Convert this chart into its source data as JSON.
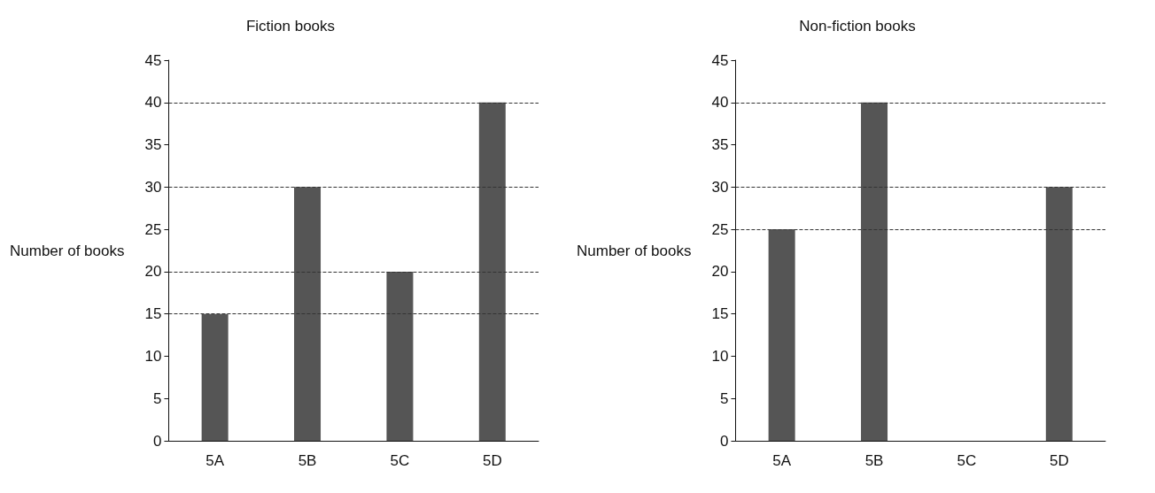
{
  "chart_data": [
    {
      "type": "bar",
      "title": "Fiction books",
      "ylabel": "Number of books",
      "categories": [
        "5A",
        "5B",
        "5C",
        "5D"
      ],
      "values": [
        15,
        30,
        20,
        40
      ],
      "color": "#555555",
      "ylim": [
        0,
        45
      ],
      "yticks": [
        0,
        5,
        10,
        15,
        20,
        25,
        30,
        35,
        40,
        45
      ],
      "grid": false,
      "ref_lines": [
        {
          "axis": "y",
          "value": 15,
          "line_style": "dashed",
          "color": "#333333"
        },
        {
          "axis": "y",
          "value": 20,
          "line_style": "dashed",
          "color": "#333333"
        },
        {
          "axis": "y",
          "value": 30,
          "line_style": "dashed",
          "color": "#333333"
        },
        {
          "axis": "y",
          "value": 40,
          "line_style": "dashed",
          "color": "#333333"
        }
      ]
    },
    {
      "type": "bar",
      "title": "Non-fiction books",
      "ylabel": "Number of books",
      "categories": [
        "5A",
        "5B",
        "5C",
        "5D"
      ],
      "values": [
        25,
        40,
        null,
        30
      ],
      "color": "#555555",
      "ylim": [
        0,
        45
      ],
      "yticks": [
        0,
        5,
        10,
        15,
        20,
        25,
        30,
        35,
        40,
        45
      ],
      "grid": false,
      "ref_lines": [
        {
          "axis": "y",
          "value": 25,
          "line_style": "dashed",
          "color": "#333333"
        },
        {
          "axis": "y",
          "value": 30,
          "line_style": "dashed",
          "color": "#333333"
        },
        {
          "axis": "y",
          "value": 40,
          "line_style": "dashed",
          "color": "#333333"
        }
      ]
    }
  ]
}
